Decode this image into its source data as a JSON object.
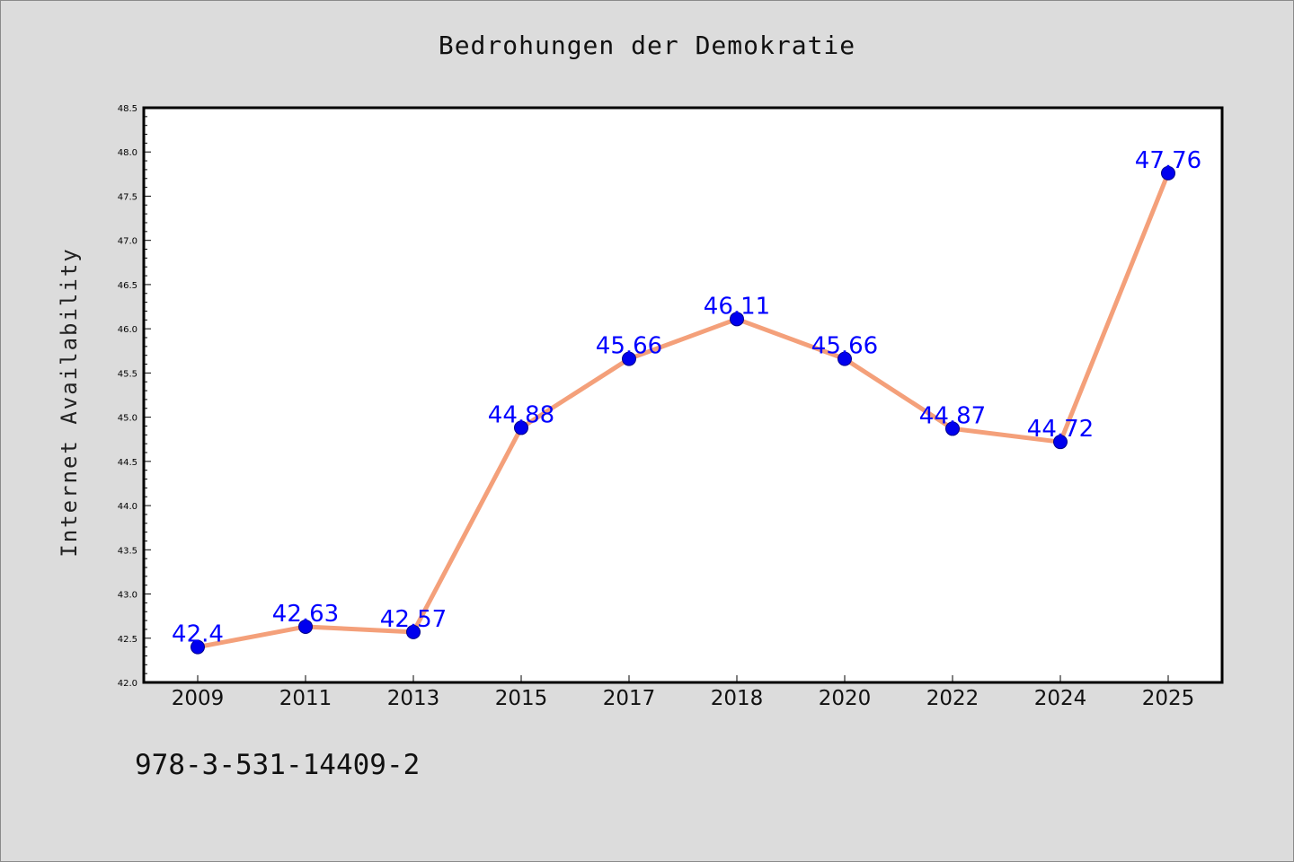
{
  "chart_data": {
    "type": "line",
    "title": "Bedrohungen der Demokratie",
    "xlabel": "",
    "ylabel": "Internet Availability",
    "categories": [
      "2009",
      "2011",
      "2013",
      "2015",
      "2017",
      "2018",
      "2020",
      "2022",
      "2024",
      "2025"
    ],
    "series": [
      {
        "values": [
          42.4,
          42.63,
          42.57,
          44.88,
          45.66,
          46.11,
          45.66,
          44.87,
          44.72,
          47.76
        ],
        "data_labels": [
          "42.4",
          "42.63",
          "42.57",
          "44.88",
          "45.66",
          "46.11",
          "45.66",
          "44.87",
          "44.72",
          "47.76"
        ],
        "line_color": "#f4a07a",
        "marker_color": "#0000ee",
        "label_color": "#0000ff"
      }
    ],
    "ylim": [
      42.0,
      48.5
    ],
    "yticks": [
      "42.0",
      "42.5",
      "43.0",
      "43.5",
      "44.0",
      "44.5",
      "45.0",
      "45.5",
      "46.0",
      "46.5",
      "47.0",
      "47.5",
      "48.0",
      "48.5"
    ],
    "grid": false,
    "background": "#dcdcdc",
    "plot_background": "#ffffff"
  },
  "footer": {
    "isbn": "978-3-531-14409-2"
  }
}
